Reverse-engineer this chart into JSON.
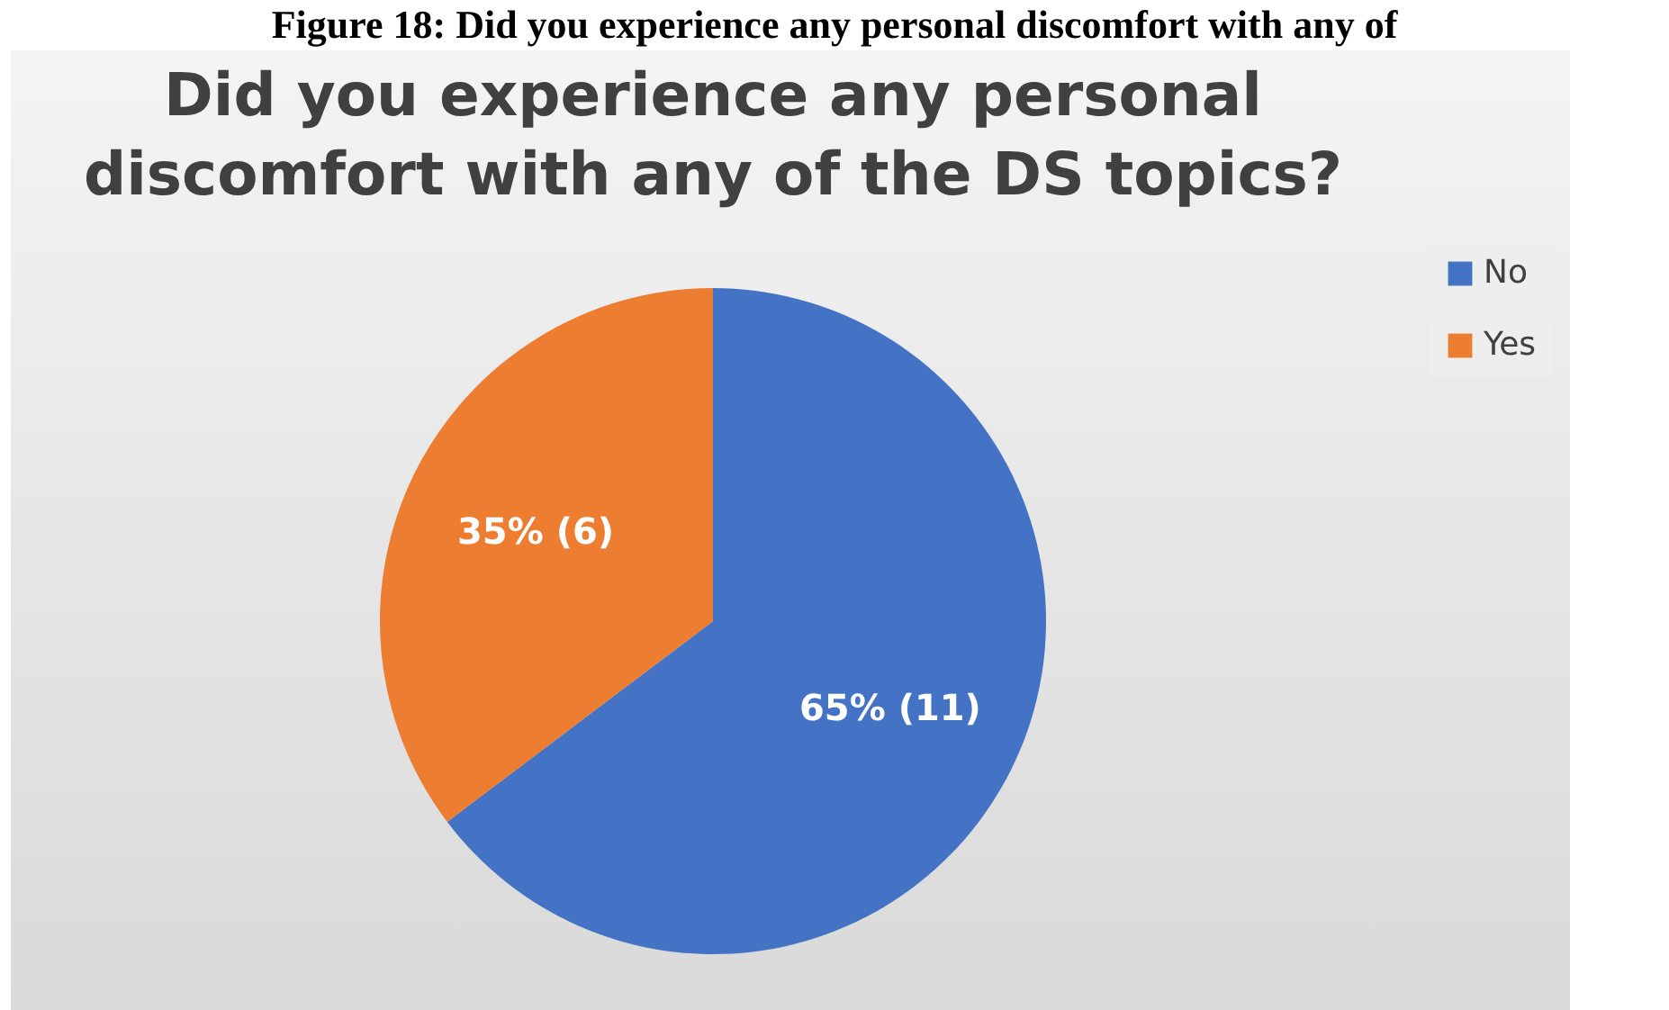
{
  "chart_data": {
    "type": "pie",
    "title": "Did you experience any personal discomfort with any of the DS topics?",
    "annotations": [
      "Figure 18: Did you experience any personal discomfort with any of"
    ],
    "categories": [
      "No",
      "Yes"
    ],
    "values": [
      11,
      6
    ],
    "colors": [
      "#4472c4",
      "#ed7d31"
    ],
    "value_labels": [
      "65% (11)",
      "35% (6)"
    ],
    "legend": "right"
  }
}
